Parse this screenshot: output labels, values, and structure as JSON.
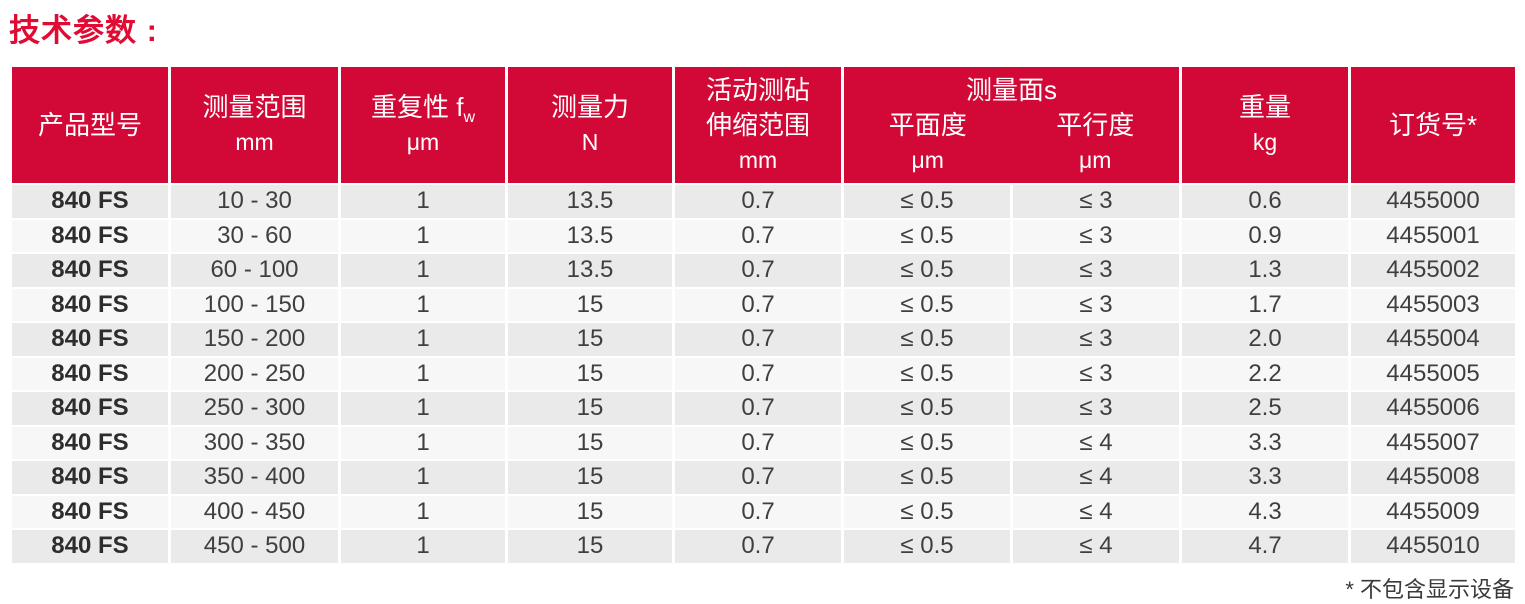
{
  "title": "技术参数 :",
  "footnote": "* 不包含显示设备",
  "colors": {
    "header_red": "#d20936",
    "title_red": "#e00a33",
    "row_odd": "#eaeaea",
    "row_even": "#f7f7f7",
    "text_dark": "#3f3f3f"
  },
  "table": {
    "header": {
      "product_model": "产品型号",
      "range_label": "测量范围",
      "range_unit": "mm",
      "repeat_label": "重复性 f",
      "repeat_sub": "w",
      "repeat_unit": "μm",
      "force_label": "测量力",
      "force_unit": "N",
      "anvil_line1": "活动测砧",
      "anvil_line2": "伸缩范围",
      "anvil_unit": "mm",
      "faces_group": "测量面s",
      "flatness_label": "平面度",
      "flatness_unit": "μm",
      "parallel_label": "平行度",
      "parallel_unit": "μm",
      "weight_label": "重量",
      "weight_unit": "kg",
      "order_label": "订货号*"
    },
    "rows": [
      [
        "840 FS",
        "10 - 30",
        "1",
        "13.5",
        "0.7",
        "≤ 0.5",
        "≤ 3",
        "0.6",
        "4455000"
      ],
      [
        "840 FS",
        "30 - 60",
        "1",
        "13.5",
        "0.7",
        "≤ 0.5",
        "≤ 3",
        "0.9",
        "4455001"
      ],
      [
        "840 FS",
        "60 - 100",
        "1",
        "13.5",
        "0.7",
        "≤ 0.5",
        "≤ 3",
        "1.3",
        "4455002"
      ],
      [
        "840 FS",
        "100 - 150",
        "1",
        "15",
        "0.7",
        "≤ 0.5",
        "≤ 3",
        "1.7",
        "4455003"
      ],
      [
        "840 FS",
        "150 - 200",
        "1",
        "15",
        "0.7",
        "≤ 0.5",
        "≤ 3",
        "2.0",
        "4455004"
      ],
      [
        "840 FS",
        "200 - 250",
        "1",
        "15",
        "0.7",
        "≤ 0.5",
        "≤ 3",
        "2.2",
        "4455005"
      ],
      [
        "840 FS",
        "250 - 300",
        "1",
        "15",
        "0.7",
        "≤ 0.5",
        "≤ 3",
        "2.5",
        "4455006"
      ],
      [
        "840 FS",
        "300 - 350",
        "1",
        "15",
        "0.7",
        "≤ 0.5",
        "≤ 4",
        "3.3",
        "4455007"
      ],
      [
        "840 FS",
        "350 - 400",
        "1",
        "15",
        "0.7",
        "≤ 0.5",
        "≤ 4",
        "3.3",
        "4455008"
      ],
      [
        "840 FS",
        "400 - 450",
        "1",
        "15",
        "0.7",
        "≤ 0.5",
        "≤ 4",
        "4.3",
        "4455009"
      ],
      [
        "840 FS",
        "450 - 500",
        "1",
        "15",
        "0.7",
        "≤ 0.5",
        "≤ 4",
        "4.7",
        "4455010"
      ]
    ]
  }
}
